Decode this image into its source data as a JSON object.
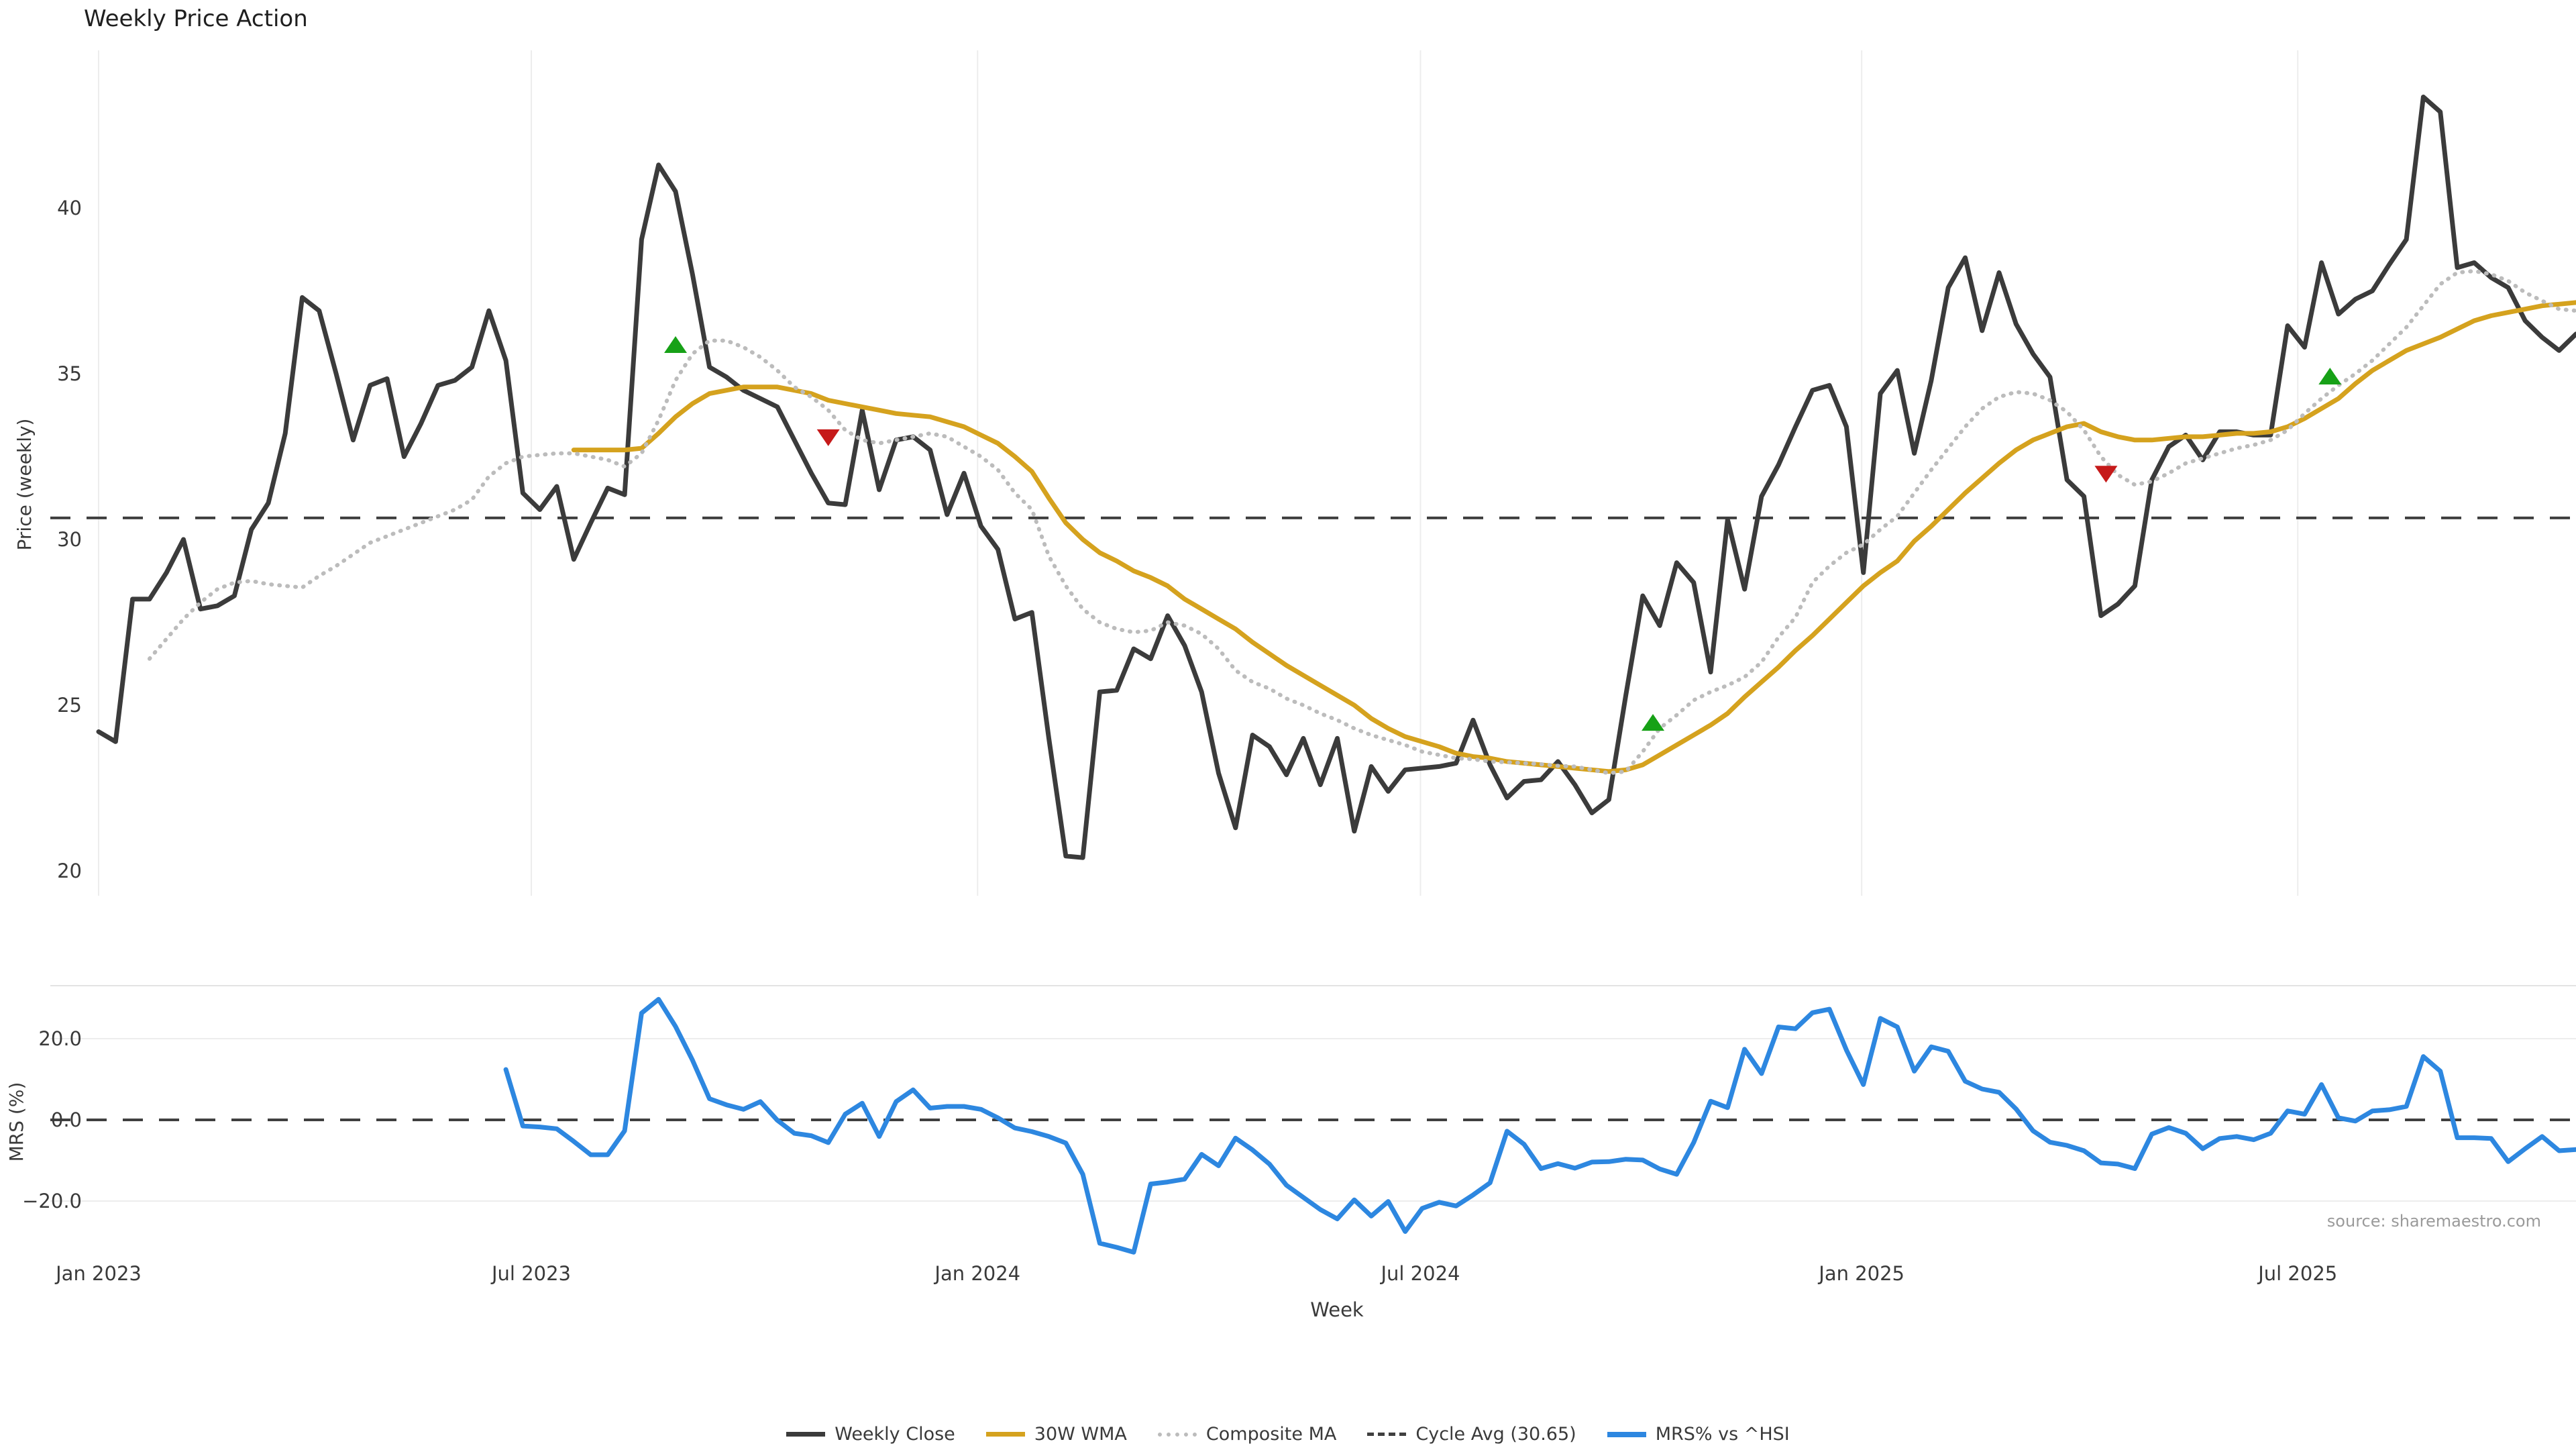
{
  "title": "Weekly Price Action",
  "source_note": "source: sharemaestro.com",
  "colors": {
    "close": "#3b3b3b",
    "wma": "#d5a21e",
    "composite": "#bcbcbc",
    "cycle_avg": "#3f3f3f",
    "mrs": "#2d87e0",
    "buy_marker": "#17a117",
    "sell_marker": "#c61a1a",
    "grid": "#ededed",
    "panel_border": "#e3e3e3",
    "tick_text": "#3a3a3a"
  },
  "chart_data": [
    {
      "type": "line",
      "panel": "price",
      "title": "Weekly Price Action",
      "xlabel": "Week",
      "ylabel": "Price (weekly)",
      "ylim": [
        19.25,
        44.75
      ],
      "yticks": [
        {
          "v": 20,
          "label": "20"
        },
        {
          "v": 25,
          "label": "25"
        },
        {
          "v": 30,
          "label": "30"
        },
        {
          "v": 35,
          "label": "35"
        },
        {
          "v": 40,
          "label": "40"
        }
      ],
      "xticks": [
        {
          "week": 0,
          "label": "Jan 2023"
        },
        {
          "week": 25.5,
          "label": "Jul 2023"
        },
        {
          "week": 51.8,
          "label": "Jan 2024"
        },
        {
          "week": 77.9,
          "label": "Jul 2024"
        },
        {
          "week": 103.9,
          "label": "Jan 2025"
        },
        {
          "week": 129.6,
          "label": "Jul 2025"
        }
      ],
      "cycle_avg": 30.65,
      "legend_position": "bottom",
      "grid": "vertical-only",
      "series": [
        {
          "name": "Weekly Close",
          "style": "solid",
          "width": 7,
          "start_week": 0,
          "values": [
            24.2,
            23.9,
            28.2,
            28.2,
            29.0,
            30.0,
            27.9,
            28.0,
            28.3,
            30.3,
            31.1,
            33.2,
            37.3,
            36.9,
            35.0,
            33.0,
            34.65,
            34.85,
            32.5,
            33.5,
            34.65,
            34.8,
            35.2,
            36.9,
            35.4,
            31.4,
            30.9,
            31.6,
            29.4,
            30.5,
            31.55,
            31.35,
            39.05,
            41.3,
            40.5,
            38.0,
            35.2,
            34.9,
            34.5,
            34.25,
            34.0,
            33.0,
            32.0,
            31.1,
            31.05,
            33.9,
            31.5,
            33.0,
            33.1,
            32.7,
            30.75,
            32.0,
            30.4,
            29.7,
            27.6,
            27.8,
            24.0,
            20.45,
            20.4,
            25.4,
            25.45,
            26.7,
            26.4,
            27.7,
            26.8,
            25.4,
            22.95,
            21.3,
            24.1,
            23.75,
            22.9,
            24.0,
            22.6,
            24.0,
            21.2,
            23.15,
            22.4,
            23.05,
            23.1,
            23.15,
            23.25,
            24.55,
            23.2,
            22.2,
            22.7,
            22.75,
            23.3,
            22.6,
            21.75,
            22.15,
            25.3,
            28.3,
            27.4,
            29.3,
            28.7,
            26.0,
            30.6,
            28.5,
            31.3,
            32.25,
            33.4,
            34.5,
            34.65,
            33.4,
            29.0,
            34.4,
            35.1,
            32.6,
            34.8,
            37.6,
            38.5,
            36.3,
            38.05,
            36.5,
            35.6,
            34.9,
            31.8,
            31.3,
            27.7,
            28.05,
            28.6,
            31.8,
            32.8,
            33.15,
            32.4,
            33.25,
            33.25,
            33.15,
            33.15,
            36.45,
            35.8,
            38.35,
            36.8,
            37.25,
            37.5,
            38.3,
            39.05,
            43.35,
            42.9,
            38.2,
            38.35,
            37.9,
            37.6,
            36.6,
            36.1,
            35.7,
            36.2
          ]
        },
        {
          "name": "30W WMA",
          "style": "solid",
          "width": 7,
          "start_week": 28,
          "values": [
            32.7,
            32.7,
            32.7,
            32.7,
            32.75,
            33.2,
            33.7,
            34.1,
            34.4,
            34.5,
            34.6,
            34.6,
            34.6,
            34.5,
            34.4,
            34.2,
            34.1,
            34.0,
            33.9,
            33.8,
            33.75,
            33.7,
            33.55,
            33.4,
            33.15,
            32.9,
            32.5,
            32.05,
            31.25,
            30.5,
            30.0,
            29.6,
            29.35,
            29.05,
            28.85,
            28.6,
            28.2,
            27.9,
            27.6,
            27.3,
            26.9,
            26.55,
            26.2,
            25.9,
            25.6,
            25.3,
            25.0,
            24.6,
            24.3,
            24.05,
            23.9,
            23.75,
            23.55,
            23.45,
            23.4,
            23.3,
            23.25,
            23.2,
            23.15,
            23.1,
            23.05,
            23.0,
            23.05,
            23.2,
            23.5,
            23.8,
            24.1,
            24.4,
            24.75,
            25.25,
            25.7,
            26.15,
            26.65,
            27.1,
            27.6,
            28.1,
            28.6,
            29.0,
            29.35,
            29.95,
            30.4,
            30.9,
            31.4,
            31.85,
            32.3,
            32.7,
            33.0,
            33.2,
            33.4,
            33.5,
            33.25,
            33.1,
            33.0,
            33.0,
            33.05,
            33.1,
            33.1,
            33.15,
            33.2,
            33.2,
            33.25,
            33.4,
            33.65,
            33.95,
            34.25,
            34.7,
            35.1,
            35.4,
            35.7,
            35.9,
            36.1,
            36.35,
            36.6,
            36.75,
            36.85,
            36.95,
            37.05,
            37.1,
            37.15
          ]
        },
        {
          "name": "Composite MA",
          "style": "dotted",
          "width": 5,
          "start_week": 3,
          "values": [
            26.4,
            27.0,
            27.6,
            28.1,
            28.5,
            28.7,
            28.75,
            28.65,
            28.6,
            28.55,
            28.9,
            29.2,
            29.55,
            29.9,
            30.1,
            30.3,
            30.5,
            30.7,
            30.9,
            31.2,
            31.9,
            32.3,
            32.5,
            32.55,
            32.6,
            32.6,
            32.5,
            32.4,
            32.2,
            32.6,
            33.6,
            34.8,
            35.6,
            36.0,
            36.0,
            35.8,
            35.5,
            35.1,
            34.6,
            34.3,
            33.9,
            33.3,
            33.0,
            32.9,
            33.0,
            33.1,
            33.2,
            33.1,
            32.8,
            32.5,
            32.1,
            31.4,
            30.9,
            29.5,
            28.6,
            27.9,
            27.5,
            27.3,
            27.2,
            27.25,
            27.5,
            27.4,
            27.15,
            26.7,
            26.05,
            25.7,
            25.5,
            25.2,
            25.0,
            24.75,
            24.55,
            24.3,
            24.1,
            23.95,
            23.8,
            23.6,
            23.5,
            23.4,
            23.37,
            23.3,
            23.28,
            23.25,
            23.22,
            23.17,
            23.15,
            23.05,
            22.95,
            23.0,
            23.6,
            24.3,
            24.7,
            25.15,
            25.4,
            25.6,
            25.85,
            26.3,
            27.05,
            27.65,
            28.7,
            29.2,
            29.6,
            29.85,
            30.3,
            30.7,
            31.4,
            32.1,
            32.75,
            33.4,
            33.95,
            34.3,
            34.45,
            34.4,
            34.2,
            33.85,
            33.3,
            32.5,
            31.95,
            31.65,
            31.75,
            32.0,
            32.3,
            32.45,
            32.6,
            32.75,
            32.85,
            33.0,
            33.3,
            33.8,
            34.25,
            34.65,
            35.0,
            35.4,
            35.9,
            36.4,
            37.05,
            37.7,
            38.05,
            38.1,
            38.0,
            37.8,
            37.45,
            37.2,
            36.95,
            36.9
          ]
        }
      ],
      "markers": [
        {
          "week": 34,
          "price": 35.85,
          "type": "buy"
        },
        {
          "week": 43,
          "price": 33.1,
          "type": "sell"
        },
        {
          "week": 91.6,
          "price": 24.45,
          "type": "buy"
        },
        {
          "week": 118.3,
          "price": 32.0,
          "type": "sell"
        },
        {
          "week": 131.5,
          "price": 34.9,
          "type": "buy"
        }
      ]
    },
    {
      "type": "line",
      "panel": "mrs",
      "ylabel": "MRS (%)",
      "ylim": [
        -36,
        33
      ],
      "yticks": [
        {
          "v": 20,
          "label": "20.0"
        },
        {
          "v": 0,
          "label": "0.0"
        },
        {
          "v": -20,
          "label": "−20.0"
        }
      ],
      "zero_line": 0,
      "series": [
        {
          "name": "MRS% vs ^HSI",
          "style": "solid",
          "width": 7,
          "start_week": 24,
          "values": [
            12.4,
            -1.5,
            -1.75,
            -2.2,
            -5.3,
            -8.6,
            -8.6,
            -2.7,
            26.3,
            29.7,
            23.0,
            14.7,
            5.2,
            3.7,
            2.6,
            4.5,
            -0.1,
            -3.3,
            -3.9,
            -5.6,
            1.4,
            4.1,
            -4.1,
            4.5,
            7.4,
            2.9,
            3.3,
            3.3,
            2.6,
            0.5,
            -2.0,
            -2.9,
            -4.1,
            -5.7,
            -13.4,
            -30.4,
            -31.4,
            -32.6,
            -15.8,
            -15.3,
            -14.6,
            -8.5,
            -11.3,
            -4.5,
            -7.4,
            -10.9,
            -16.1,
            -19.1,
            -22.1,
            -24.4,
            -19.7,
            -23.7,
            -20.1,
            -27.5,
            -21.8,
            -20.3,
            -21.2,
            -18.5,
            -15.5,
            -2.8,
            -6.0,
            -12.0,
            -10.8,
            -11.9,
            -10.4,
            -10.3,
            -9.7,
            -9.9,
            -12.1,
            -13.4,
            -5.6,
            4.6,
            3.0,
            17.4,
            11.4,
            22.9,
            22.45,
            26.4,
            27.25,
            17.2,
            8.7,
            25.0,
            22.9,
            12.0,
            18.0,
            16.9,
            9.5,
            7.6,
            6.8,
            2.7,
            -2.7,
            -5.5,
            -6.3,
            -7.6,
            -10.6,
            -10.9,
            -12.0,
            -3.5,
            -1.9,
            -3.3,
            -7.1,
            -4.6,
            -4.1,
            -4.9,
            -3.3,
            2.2,
            1.4,
            8.7,
            0.5,
            -0.3,
            2.2,
            2.5,
            3.3,
            15.6,
            12.0,
            -4.4,
            -4.4,
            -4.6,
            -10.3,
            -7.1,
            -4.1,
            -7.6,
            -7.3
          ]
        }
      ]
    }
  ],
  "legend": [
    {
      "label": "Weekly Close",
      "style": "solid",
      "color": "#3b3b3b",
      "thickness": 7
    },
    {
      "label": "30W WMA",
      "style": "solid",
      "color": "#d5a21e",
      "thickness": 7
    },
    {
      "label": "Composite MA",
      "style": "dotted",
      "color": "#bcbcbc",
      "thickness": 6
    },
    {
      "label": "Cycle Avg (30.65)",
      "style": "dashed",
      "color": "#3f3f3f",
      "thickness": 5
    },
    {
      "label": "MRS% vs ^HSI",
      "style": "solid",
      "color": "#2d87e0",
      "thickness": 8
    }
  ]
}
